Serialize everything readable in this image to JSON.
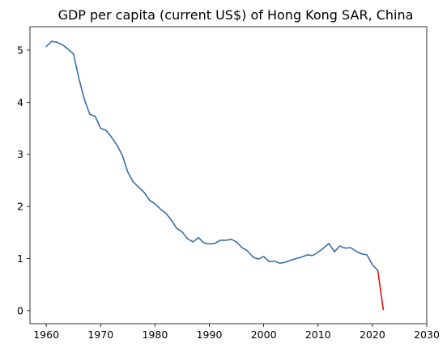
{
  "chart_data": {
    "type": "line",
    "title": "GDP per capita (current US$) of Hong Kong SAR, China",
    "xlabel": "",
    "ylabel": "",
    "xlim": [
      1957,
      2030
    ],
    "ylim": [
      -0.25,
      5.45
    ],
    "x_ticks": [
      "1960",
      "1970",
      "1980",
      "1990",
      "2000",
      "2010",
      "2020",
      "2030"
    ],
    "y_ticks": [
      "0",
      "1",
      "2",
      "3",
      "4",
      "5"
    ],
    "grid": false,
    "legend": "none",
    "series": [
      {
        "color": "#3a6ea5",
        "x": [
          1960,
          1961,
          1962,
          1963,
          1964,
          1965,
          1966,
          1967,
          1968,
          1969,
          1970,
          1971,
          1972,
          1973,
          1974,
          1975,
          1976,
          1977,
          1978,
          1979,
          1980,
          1981,
          1982,
          1983,
          1984,
          1985,
          1986,
          1987,
          1988,
          1989,
          1990,
          1991,
          1992,
          1993,
          1994,
          1995,
          1996,
          1997,
          1998,
          1999,
          2000,
          2001,
          2002,
          2003,
          2004,
          2005,
          2006,
          2007,
          2008,
          2009,
          2010,
          2011,
          2012,
          2013,
          2014,
          2015,
          2016,
          2017,
          2018,
          2019,
          2020,
          2021
        ],
        "values": [
          5.07,
          5.17,
          5.15,
          5.1,
          5.02,
          4.93,
          4.46,
          4.06,
          3.77,
          3.73,
          3.5,
          3.46,
          3.33,
          3.18,
          2.98,
          2.66,
          2.47,
          2.37,
          2.27,
          2.12,
          2.05,
          1.95,
          1.87,
          1.74,
          1.58,
          1.51,
          1.38,
          1.32,
          1.4,
          1.3,
          1.28,
          1.29,
          1.35,
          1.35,
          1.37,
          1.32,
          1.21,
          1.15,
          1.03,
          0.99,
          1.04,
          0.94,
          0.95,
          0.91,
          0.93,
          0.97,
          1.0,
          1.03,
          1.07,
          1.06,
          1.12,
          1.2,
          1.29,
          1.13,
          1.24,
          1.2,
          1.21,
          1.14,
          1.09,
          1.07,
          0.88,
          0.77
        ]
      },
      {
        "color": "#e3130f",
        "x": [
          2021,
          2022
        ],
        "values": [
          0.77,
          0.02
        ]
      }
    ]
  }
}
